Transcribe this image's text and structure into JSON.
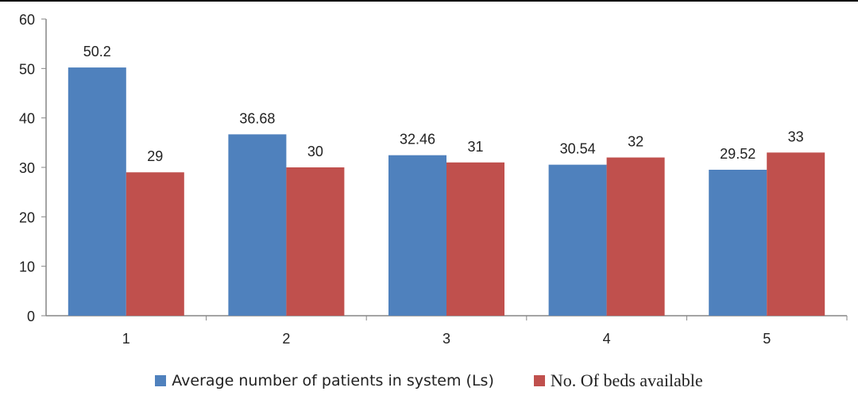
{
  "chart_data": {
    "type": "bar",
    "title": "",
    "xlabel": "",
    "ylabel": "",
    "categories": [
      "1",
      "2",
      "3",
      "4",
      "5"
    ],
    "series": [
      {
        "name": "Average number of patients in system (Ls)",
        "values": [
          50.2,
          36.68,
          32.46,
          30.54,
          29.52
        ],
        "labels": [
          "50.2",
          "36.68",
          "32.46",
          "30.54",
          "29.52"
        ],
        "color": "#4f81bd"
      },
      {
        "name": "No. Of beds available",
        "values": [
          29,
          30,
          31,
          32,
          33
        ],
        "labels": [
          "29",
          "30",
          "31",
          "32",
          "33"
        ],
        "color": "#c0504d"
      }
    ],
    "ylim": [
      0,
      60
    ],
    "yticks": [
      "0",
      "10",
      "20",
      "30",
      "40",
      "50",
      "60"
    ],
    "grid": false,
    "legend_position": "bottom"
  }
}
